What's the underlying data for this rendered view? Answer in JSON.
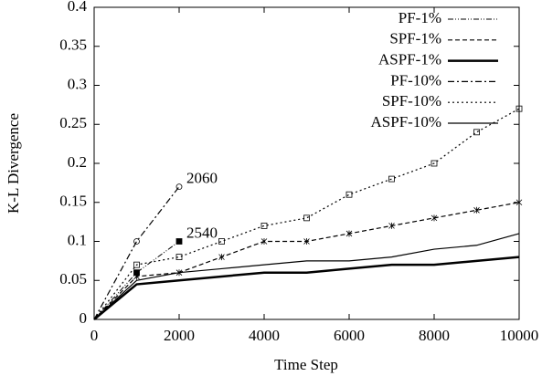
{
  "chart_data": {
    "type": "line",
    "xlabel": "Time Step",
    "ylabel": "K-L Divergence",
    "x": [
      0,
      1000,
      2000,
      3000,
      4000,
      5000,
      6000,
      7000,
      8000,
      9000,
      10000
    ],
    "series": [
      {
        "name": "PF-1%",
        "color": "#000000",
        "dash": "6 2 1 2 1 2",
        "width": 1,
        "marker": "square-filled",
        "values": [
          0,
          0.06,
          0.1,
          null,
          null,
          null,
          null,
          null,
          null,
          null,
          null
        ]
      },
      {
        "name": "SPF-1%",
        "color": "#000000",
        "dash": "5 3",
        "width": 1.2,
        "marker": "star",
        "values": [
          0,
          0.055,
          0.06,
          0.08,
          0.1,
          0.1,
          0.11,
          0.12,
          0.13,
          0.14,
          0.15
        ]
      },
      {
        "name": "ASPF-1%",
        "color": "#000000",
        "dash": "none",
        "width": 2.5,
        "marker": "none",
        "values": [
          0,
          0.045,
          0.05,
          0.055,
          0.06,
          0.06,
          0.065,
          0.07,
          0.07,
          0.075,
          0.08
        ]
      },
      {
        "name": "PF-10%",
        "color": "#000000",
        "dash": "7 3 2 3",
        "width": 1.2,
        "marker": "circle",
        "values": [
          0,
          0.1,
          0.17,
          null,
          null,
          null,
          null,
          null,
          null,
          null,
          null
        ]
      },
      {
        "name": "SPF-10%",
        "color": "#000000",
        "dash": "2 3",
        "width": 1.2,
        "marker": "square",
        "values": [
          0,
          0.07,
          0.08,
          0.1,
          0.12,
          0.13,
          0.16,
          0.18,
          0.2,
          0.24,
          0.27
        ]
      },
      {
        "name": "ASPF-10%",
        "color": "#000000",
        "dash": "none",
        "width": 1.2,
        "marker": "none",
        "values": [
          0,
          0.05,
          0.06,
          0.065,
          0.07,
          0.075,
          0.075,
          0.08,
          0.09,
          0.095,
          0.11
        ]
      }
    ],
    "annotations": [
      {
        "text": "2060",
        "x": 2000,
        "y": 0.17
      },
      {
        "text": "2540",
        "x": 2000,
        "y": 0.1
      }
    ],
    "xlim": [
      0,
      10000
    ],
    "xticks": [
      0,
      2000,
      4000,
      6000,
      8000,
      10000
    ],
    "ylim": [
      0,
      0.4
    ],
    "yticks": [
      0,
      0.05,
      0.1,
      0.15,
      0.2,
      0.25,
      0.3,
      0.35,
      0.4
    ],
    "grid": false,
    "legend": "top-right"
  }
}
